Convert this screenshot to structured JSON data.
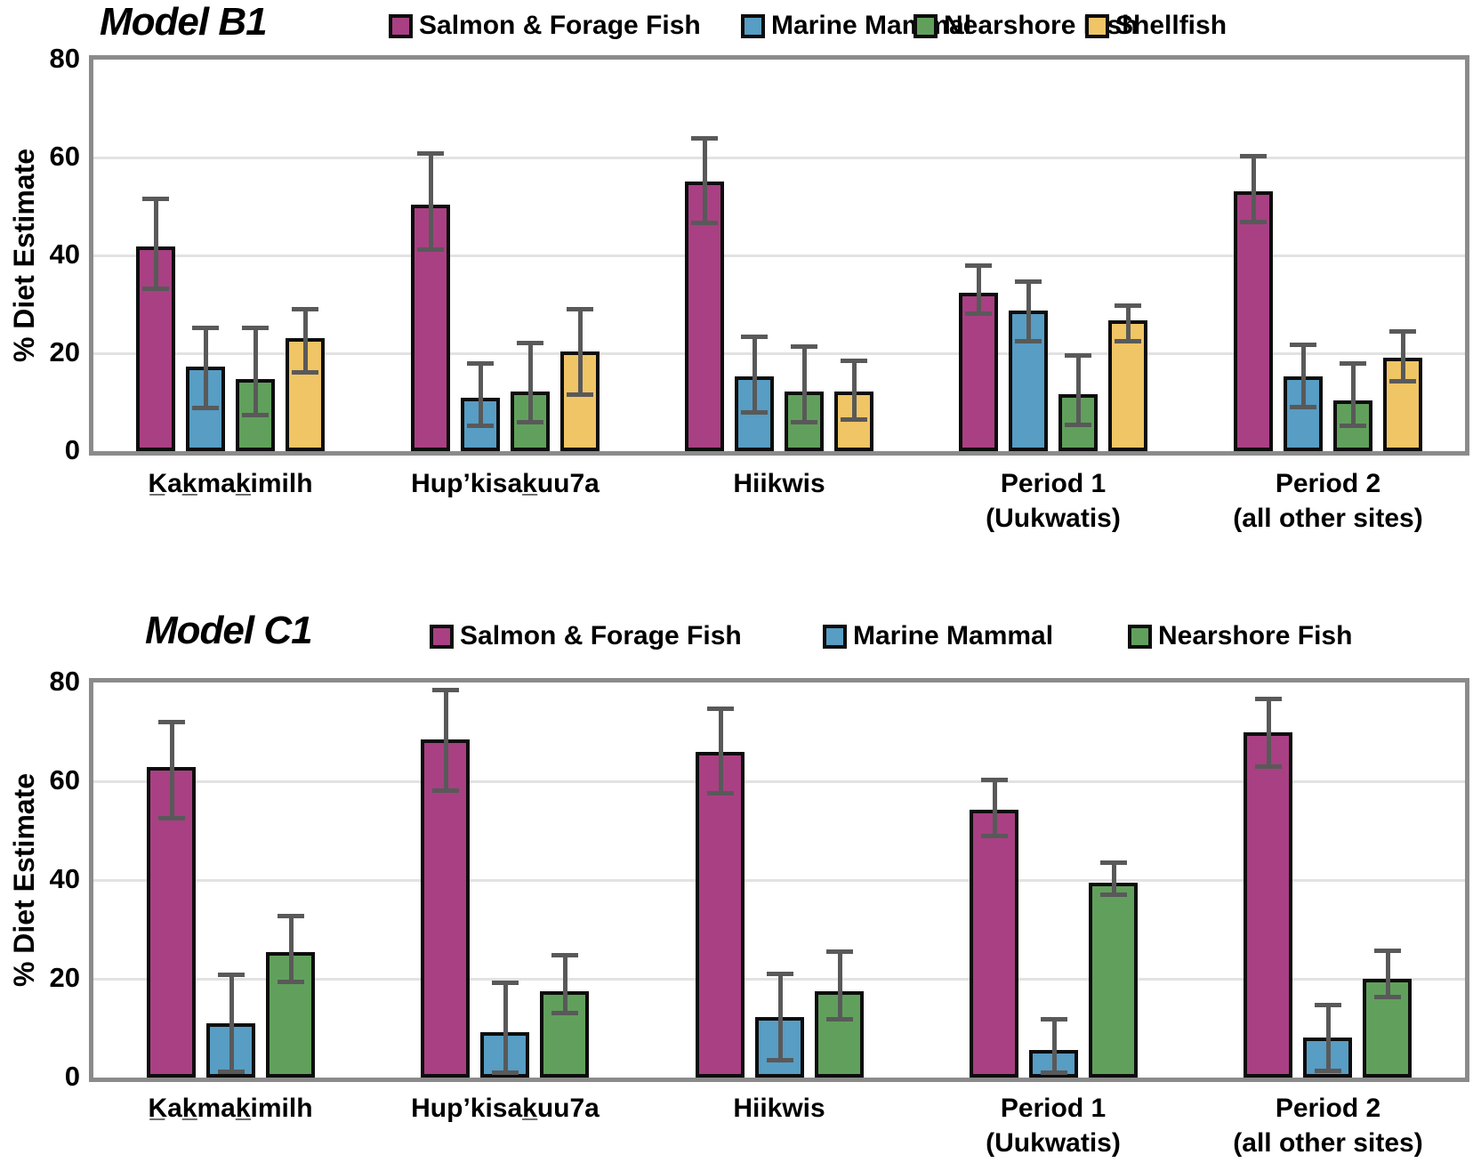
{
  "chart_data": [
    {
      "type": "bar",
      "title": "Model B1",
      "ylabel": "% Diet Estimate",
      "ylim": [
        0,
        80
      ],
      "yticks": [
        0,
        20,
        40,
        60,
        80
      ],
      "grid": "horizontal at 20,40,60",
      "legend_position": "top",
      "error_bars": true,
      "categories": [
        [
          "K̲ak̲mak̲imilh"
        ],
        [
          "Hup’kisak̲uu7a"
        ],
        [
          "Hiikwis"
        ],
        [
          "Period 1",
          "(Uukwatis)"
        ],
        [
          "Period 2",
          "(all other sites)"
        ]
      ],
      "series": [
        {
          "name": "Salmon & Forage Fish",
          "color": "#a94083",
          "values": [
            41.8,
            50.4,
            55.0,
            32.4,
            53.1
          ],
          "err_lo": [
            32.8,
            40.8,
            46.3,
            27.6,
            46.4
          ],
          "err_hi": [
            52.0,
            61.3,
            64.4,
            38.3,
            60.7
          ]
        },
        {
          "name": "Marine Mammal",
          "color": "#579dc4",
          "values": [
            17.3,
            10.9,
            15.3,
            28.7,
            15.3
          ],
          "err_lo": [
            8.4,
            4.8,
            7.5,
            22.0,
            8.5
          ],
          "err_hi": [
            25.7,
            18.4,
            23.8,
            35.1,
            22.1
          ]
        },
        {
          "name": "Nearshore Fish",
          "color": "#61a05c",
          "values": [
            14.8,
            12.2,
            12.2,
            11.6,
            10.4
          ],
          "err_lo": [
            6.9,
            5.5,
            5.6,
            4.9,
            4.6
          ],
          "err_hi": [
            25.6,
            22.5,
            21.9,
            20.0,
            18.3
          ]
        },
        {
          "name": "Shellfish",
          "color": "#f0c566",
          "values": [
            23.0,
            20.4,
            12.2,
            26.8,
            19.0
          ],
          "err_lo": [
            15.5,
            11.0,
            6.1,
            21.9,
            14.0
          ],
          "err_hi": [
            29.4,
            29.4,
            19.0,
            30.1,
            25.0
          ]
        }
      ]
    },
    {
      "type": "bar",
      "title": "Model C1",
      "ylabel": "% Diet Estimate",
      "ylim": [
        0,
        80
      ],
      "yticks": [
        0,
        20,
        40,
        60,
        80
      ],
      "grid": "horizontal at 20,40,60",
      "legend_position": "top",
      "error_bars": true,
      "categories": [
        [
          "K̲ak̲mak̲imilh"
        ],
        [
          "Hup’kisak̲uu7a"
        ],
        [
          "Hiikwis"
        ],
        [
          "Period 1",
          "(Uukwatis)"
        ],
        [
          "Period 2",
          "(all other sites)"
        ]
      ],
      "series": [
        {
          "name": "Salmon & Forage Fish",
          "color": "#a94083",
          "values": [
            62.8,
            68.5,
            65.9,
            54.3,
            69.9
          ],
          "err_lo": [
            52.0,
            57.7,
            57.1,
            48.4,
            62.6
          ],
          "err_hi": [
            72.4,
            78.9,
            75.2,
            60.7,
            77.2
          ]
        },
        {
          "name": "Marine Mammal",
          "color": "#579dc4",
          "values": [
            11.0,
            9.2,
            12.3,
            5.5,
            8.1
          ],
          "err_lo": [
            0.6,
            0.6,
            3.2,
            0.4,
            0.9
          ],
          "err_hi": [
            21.2,
            19.7,
            21.5,
            12.2,
            15.2
          ]
        },
        {
          "name": "Nearshore Fish",
          "color": "#61a05c",
          "values": [
            25.4,
            17.4,
            17.5,
            39.4,
            20.0
          ],
          "err_lo": [
            18.9,
            12.7,
            11.3,
            36.6,
            15.9
          ],
          "err_hi": [
            33.2,
            25.3,
            25.9,
            44.0,
            26.2
          ]
        }
      ]
    }
  ]
}
